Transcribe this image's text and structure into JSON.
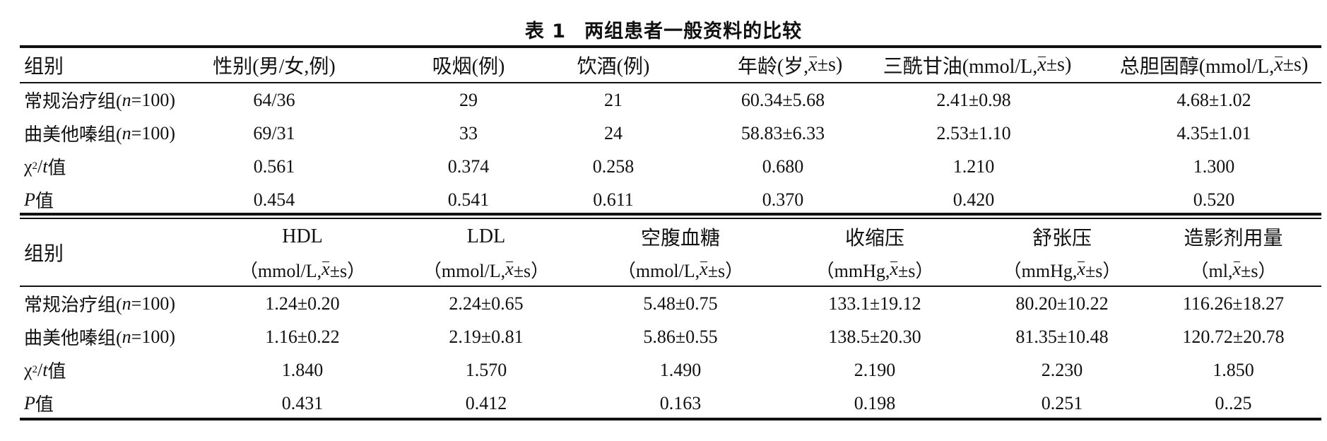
{
  "caption": {
    "number": "表 1",
    "title": "两组患者一般资料的比较"
  },
  "part1": {
    "header": {
      "group": "组别",
      "sex": "性别(男/女,例)",
      "smoking": "吸烟(例)",
      "drinking": "饮酒(例)",
      "age_prefix": "年龄(岁,",
      "tg_prefix": "三酰甘油(mmol/L,",
      "tc_prefix": "总胆固醇(mmol/L,",
      "unit_x": "x",
      "unit_suffix": "±s)"
    },
    "rows": [
      {
        "label_a": "常规治疗组(",
        "label_n": "n",
        "label_b": "=100)",
        "values": [
          "64/36",
          "29",
          "21",
          "60.34±5.68",
          "2.41±0.98",
          "4.68±1.02"
        ]
      },
      {
        "label_a": "曲美他嗪组(",
        "label_n": "n",
        "label_b": "=100)",
        "values": [
          "69/31",
          "33",
          "24",
          "58.83±6.33",
          "2.53±1.10",
          "4.35±1.01"
        ]
      },
      {
        "label_a": "χ",
        "label_sup": "2",
        "label_b": "/",
        "label_t": "t",
        "label_c": " 值",
        "values": [
          "0.561",
          "0.374",
          "0.258",
          "0.680",
          "1.210",
          "1.300"
        ]
      },
      {
        "label_p": "P",
        "label_c": " 值",
        "values": [
          "0.454",
          "0.541",
          "0.611",
          "0.370",
          "0.420",
          "0.520"
        ]
      }
    ]
  },
  "part2": {
    "header": {
      "group": "组别",
      "cols": [
        "HDL",
        "LDL",
        "空腹血糖",
        "收缩压",
        "舒张压",
        "造影剂用量"
      ],
      "units": [
        "（mmol/L,",
        "（mmol/L,",
        "（mmol/L,",
        "（mmHg,",
        "（mmHg,",
        "（ml,"
      ],
      "unit_x": "x",
      "unit_suffix": "±s）"
    },
    "rows": [
      {
        "label_a": "常规治疗组(",
        "label_n": "n",
        "label_b": "=100)",
        "values": [
          "1.24±0.20",
          "2.24±0.65",
          "5.48±0.75",
          "133.1±19.12",
          "80.20±10.22",
          "116.26±18.27"
        ]
      },
      {
        "label_a": "曲美他嗪组(",
        "label_n": "n",
        "label_b": "=100)",
        "values": [
          "1.16±0.22",
          "2.19±0.81",
          "5.86±0.55",
          "138.5±20.30",
          "81.35±10.48",
          "120.72±20.78"
        ]
      },
      {
        "label_a": "χ",
        "label_sup": "2",
        "label_b": "/",
        "label_t": "t",
        "label_c": " 值",
        "values": [
          "1.840",
          "1.570",
          "1.490",
          "2.190",
          "2.230",
          "1.850"
        ]
      },
      {
        "label_p": "P",
        "label_c": " 值",
        "values": [
          "0.431",
          "0.412",
          "0.163",
          "0.198",
          "0.251",
          "0..25"
        ]
      }
    ]
  }
}
